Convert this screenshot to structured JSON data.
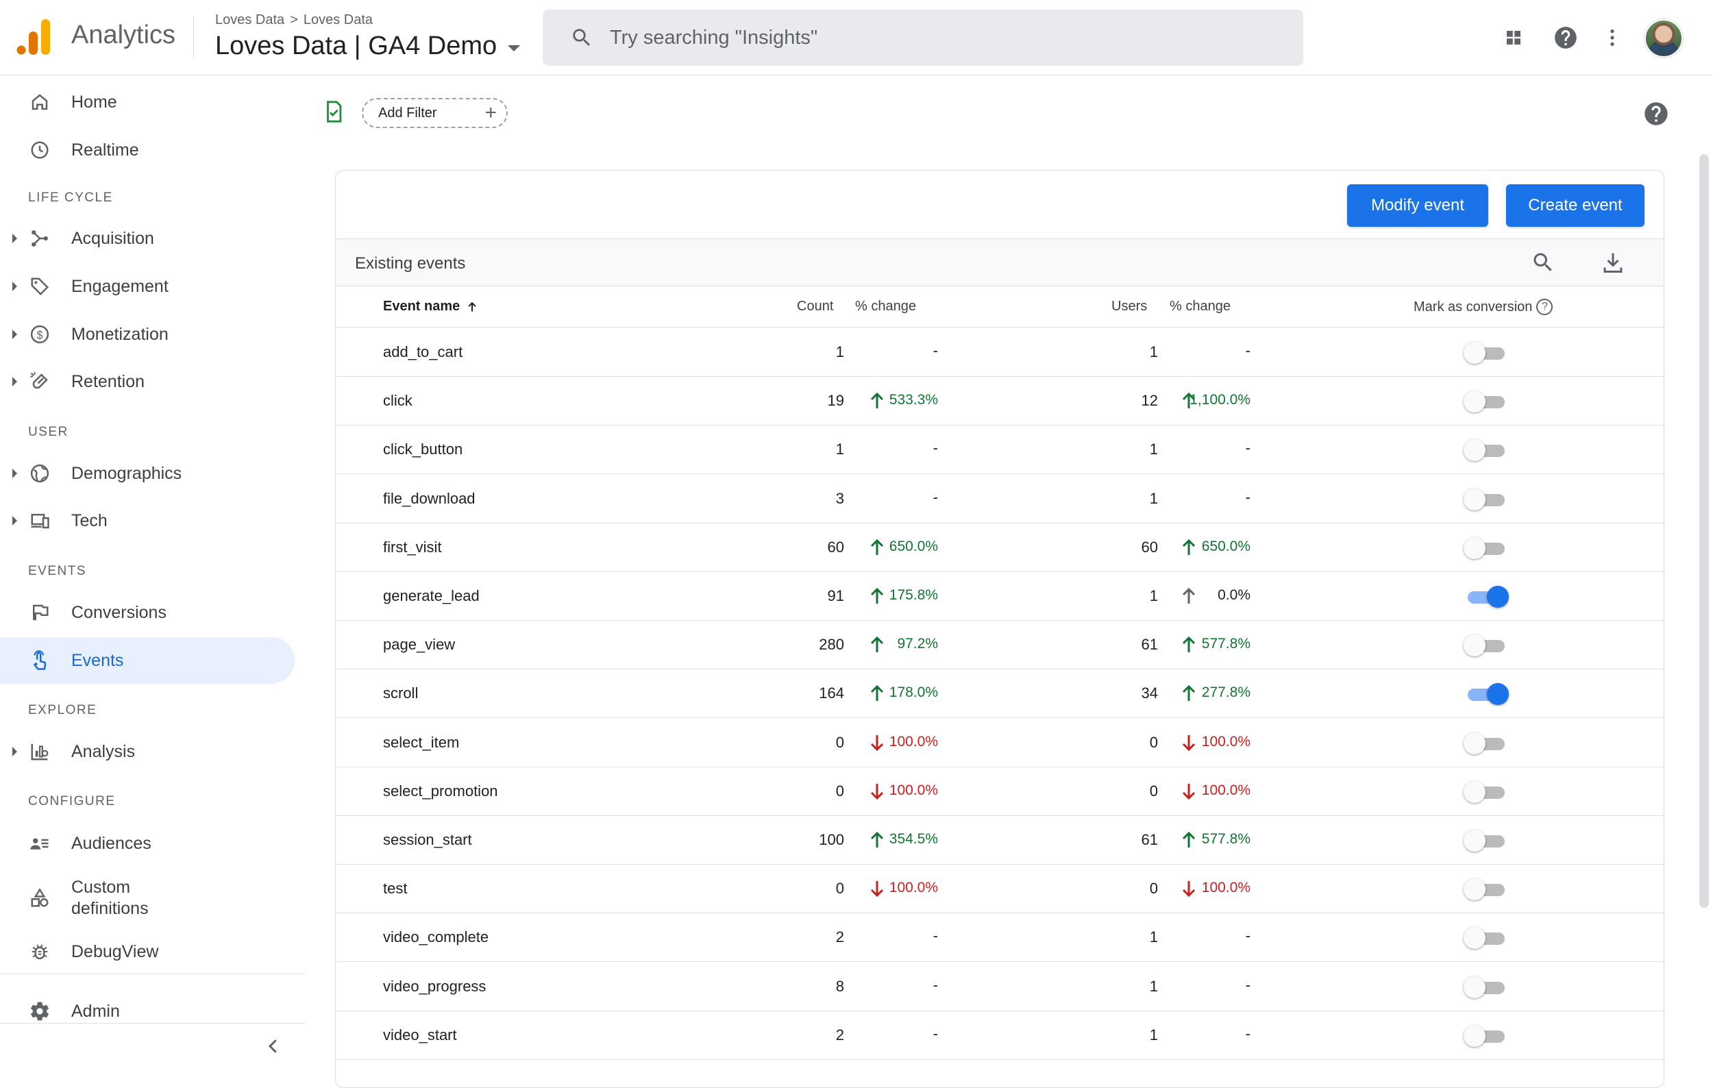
{
  "app": {
    "name": "Analytics"
  },
  "breadcrumb": {
    "account": "Loves Data",
    "separator": ">",
    "property_group": "Loves Data"
  },
  "property": {
    "name": "Loves Data | GA4 Demo"
  },
  "search": {
    "placeholder": "Try searching \"Insights\""
  },
  "colors": {
    "accent": "#1a73e8",
    "up": "#137333",
    "down": "#c5221f",
    "active_bg": "#e8f0fe"
  },
  "sidebar": {
    "home": "Home",
    "realtime": "Realtime",
    "lifecycle_label": "LIFE CYCLE",
    "acquisition": "Acquisition",
    "engagement": "Engagement",
    "monetization": "Monetization",
    "retention": "Retention",
    "user_label": "USER",
    "demographics": "Demographics",
    "tech": "Tech",
    "events_label": "EVENTS",
    "conversions": "Conversions",
    "events": "Events",
    "explore_label": "EXPLORE",
    "analysis": "Analysis",
    "configure_label": "CONFIGURE",
    "audiences": "Audiences",
    "custom_definitions_line1": "Custom",
    "custom_definitions_line2": "definitions",
    "debugview": "DebugView",
    "admin": "Admin"
  },
  "filter": {
    "add_label": "Add Filter",
    "plus": "+"
  },
  "toolbar": {
    "modify_event": "Modify event",
    "create_event": "Create event"
  },
  "table": {
    "title": "Existing events",
    "columns": {
      "event_name": "Event name",
      "count": "Count",
      "count_change": "% change",
      "users": "Users",
      "users_change": "% change",
      "mark_as_conversion": "Mark as conversion",
      "help": "?"
    },
    "rows": [
      {
        "name": "add_to_cart",
        "count": "1",
        "count_change": "-",
        "count_dir": "none",
        "users": "1",
        "users_change": "-",
        "users_dir": "none",
        "conversion": false
      },
      {
        "name": "click",
        "count": "19",
        "count_change": "533.3%",
        "count_dir": "up",
        "users": "12",
        "users_change": "1,100.0%",
        "users_dir": "up",
        "conversion": false
      },
      {
        "name": "click_button",
        "count": "1",
        "count_change": "-",
        "count_dir": "none",
        "users": "1",
        "users_change": "-",
        "users_dir": "none",
        "conversion": false
      },
      {
        "name": "file_download",
        "count": "3",
        "count_change": "-",
        "count_dir": "none",
        "users": "1",
        "users_change": "-",
        "users_dir": "none",
        "conversion": false
      },
      {
        "name": "first_visit",
        "count": "60",
        "count_change": "650.0%",
        "count_dir": "up",
        "users": "60",
        "users_change": "650.0%",
        "users_dir": "up",
        "conversion": false
      },
      {
        "name": "generate_lead",
        "count": "91",
        "count_change": "175.8%",
        "count_dir": "up",
        "users": "1",
        "users_change": "0.0%",
        "users_dir": "neutral",
        "conversion": true
      },
      {
        "name": "page_view",
        "count": "280",
        "count_change": "97.2%",
        "count_dir": "up",
        "users": "61",
        "users_change": "577.8%",
        "users_dir": "up",
        "conversion": false
      },
      {
        "name": "scroll",
        "count": "164",
        "count_change": "178.0%",
        "count_dir": "up",
        "users": "34",
        "users_change": "277.8%",
        "users_dir": "up",
        "conversion": true
      },
      {
        "name": "select_item",
        "count": "0",
        "count_change": "100.0%",
        "count_dir": "down",
        "users": "0",
        "users_change": "100.0%",
        "users_dir": "down",
        "conversion": false
      },
      {
        "name": "select_promotion",
        "count": "0",
        "count_change": "100.0%",
        "count_dir": "down",
        "users": "0",
        "users_change": "100.0%",
        "users_dir": "down",
        "conversion": false
      },
      {
        "name": "session_start",
        "count": "100",
        "count_change": "354.5%",
        "count_dir": "up",
        "users": "61",
        "users_change": "577.8%",
        "users_dir": "up",
        "conversion": false
      },
      {
        "name": "test",
        "count": "0",
        "count_change": "100.0%",
        "count_dir": "down",
        "users": "0",
        "users_change": "100.0%",
        "users_dir": "down",
        "conversion": false
      },
      {
        "name": "video_complete",
        "count": "2",
        "count_change": "-",
        "count_dir": "none",
        "users": "1",
        "users_change": "-",
        "users_dir": "none",
        "conversion": false
      },
      {
        "name": "video_progress",
        "count": "8",
        "count_change": "-",
        "count_dir": "none",
        "users": "1",
        "users_change": "-",
        "users_dir": "none",
        "conversion": false
      },
      {
        "name": "video_start",
        "count": "2",
        "count_change": "-",
        "count_dir": "none",
        "users": "1",
        "users_change": "-",
        "users_dir": "none",
        "conversion": false
      }
    ]
  }
}
